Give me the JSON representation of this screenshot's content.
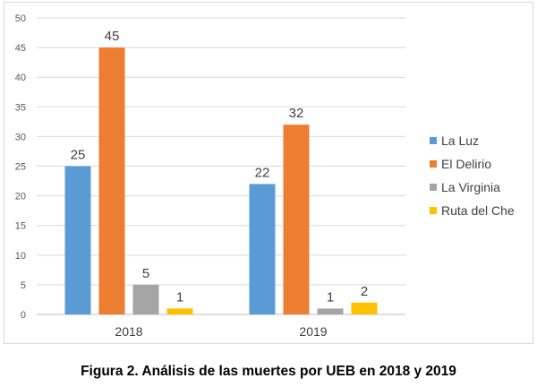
{
  "chart_data": {
    "type": "bar",
    "categories": [
      "2018",
      "2019"
    ],
    "series": [
      {
        "name": "La Luz",
        "values": [
          25,
          22
        ],
        "color": "#5b9bd5"
      },
      {
        "name": "El Delirio",
        "values": [
          45,
          32
        ],
        "color": "#ed7d31"
      },
      {
        "name": "La Virginia",
        "values": [
          5,
          1
        ],
        "color": "#a5a5a5"
      },
      {
        "name": "Ruta del Che",
        "values": [
          1,
          2
        ],
        "color": "#ffc000"
      }
    ],
    "ylim": [
      0,
      50
    ],
    "yticks": [
      0,
      5,
      10,
      15,
      20,
      25,
      30,
      35,
      40,
      45,
      50
    ],
    "grid": true,
    "legend_position": "right",
    "data_labels": true
  },
  "caption": "Figura 2. Análisis de las muertes por UEB en 2018 y 2019"
}
